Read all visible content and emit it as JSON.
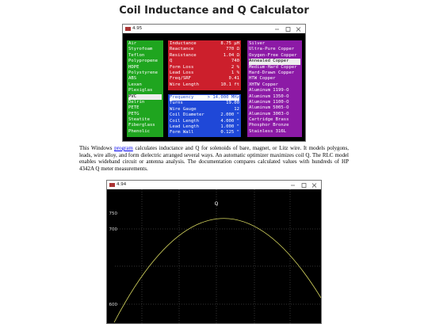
{
  "header": {
    "title": "Coil Inductance and Q Calculator"
  },
  "window1": {
    "title": "4.95",
    "dielectrics": [
      "Air",
      "Styrofoam",
      "Teflon",
      "Polypropene",
      "HDPE",
      "Polystyrene",
      "ABS",
      "Lexan",
      "Plexiglas",
      "PVC",
      "Delrin",
      "PETE",
      "PETG",
      "Steatite",
      "Fiberglass",
      "Phenolic"
    ],
    "dielectric_selected": "PVC",
    "results": [
      [
        "Inductance",
        "8.75 µH"
      ],
      [
        "Reactance",
        "770 Ω"
      ],
      [
        "Resistance",
        "1.04 Ω"
      ],
      [
        "Q",
        "740"
      ],
      [
        "Form Loss",
        "2 %"
      ],
      [
        "Lead Loss",
        "1 %"
      ],
      [
        "Freq/SRF",
        "0.41"
      ],
      [
        "Wire Length",
        "10.1 ft"
      ]
    ],
    "inputs": [
      [
        "Frequency",
        "> 14.000 MHz"
      ],
      [
        "Turns",
        "19.00"
      ],
      [
        "Wire Gauge",
        "12"
      ],
      [
        "Coil Diameter",
        "2.000 \""
      ],
      [
        "Coil Length",
        "4.000 \""
      ],
      [
        "Lead Length",
        "1.000 \""
      ],
      [
        "Form Wall",
        "0.125 \""
      ]
    ],
    "alloys": [
      "Silver",
      "Ultra-Pure Copper",
      "Oxygen-Free Copper",
      "Annealed Copper",
      "Medium-Hard Copper",
      "Hard-Drawn Copper",
      "HTW Copper",
      "XHTW Copper",
      "Aluminum 1199-O",
      "Aluminum 1350-O",
      "Aluminum 1100-O",
      "Aluminum 5005-O",
      "Aluminum 3003-O",
      "Cartridge Brass",
      "Phosphor Bronze",
      "Stainless 316L"
    ],
    "alloy_selected": "Annealed Copper"
  },
  "description": {
    "before": "This Windows ",
    "link": "program",
    "after": " calculates inductance and Q for solenoids of bare, magnet, or Litz wire. It models polygons, leads, wire alloy, and form dielectric arranged several ways. An automatic optimizer maximizes coil Q. The RLC model enables wideband circuit or antenna analysis. The documentation compares calculated values with hundreds of HP 4342A Q meter measurements."
  },
  "window2": {
    "title": "4.94",
    "curve_label": "Q",
    "tick_labels": [
      "750",
      "700",
      "600"
    ]
  }
}
